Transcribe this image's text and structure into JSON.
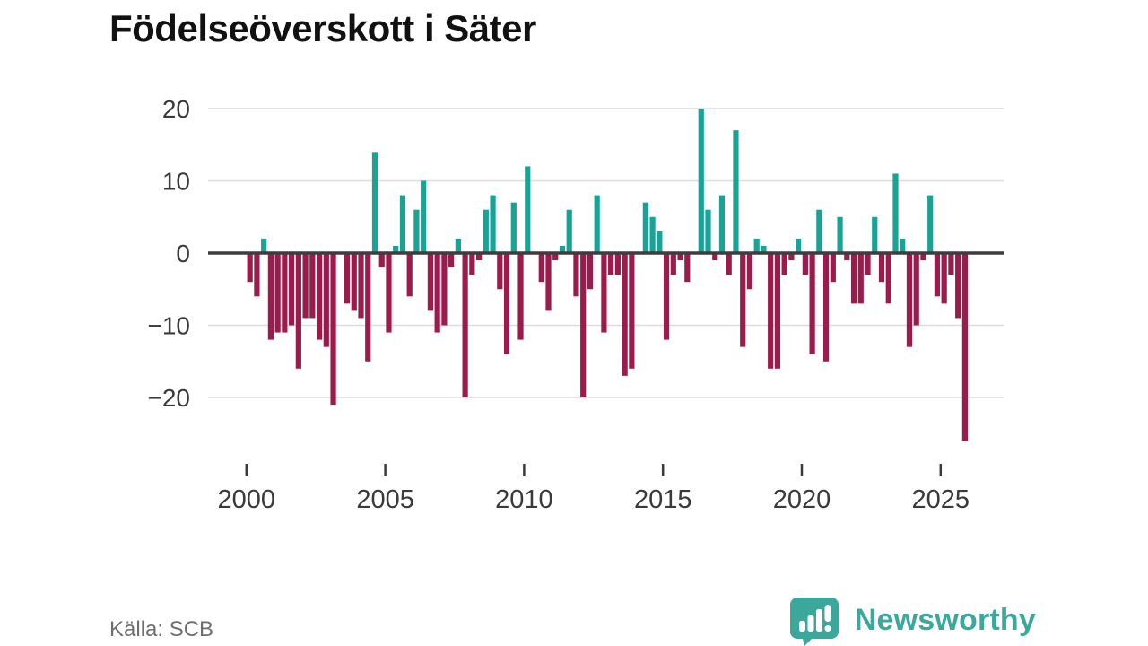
{
  "title": "Födelseöverskott i Säter",
  "source": "Källa: SCB",
  "brand": {
    "name": "Newsworthy",
    "icon": "bar-chart-speech-bubble-icon"
  },
  "colors": {
    "positive": "#1aa296",
    "negative": "#9b1b4d",
    "zero_axis": "#3d3d3d",
    "grid": "#dcdcdc",
    "tick_text": "#3a3a3a",
    "title_text": "#111111",
    "source_text": "#6e6e6e",
    "brand_teal": "#3ba89b"
  },
  "chart_data": {
    "type": "bar",
    "title": "Födelseöverskott i Säter",
    "frequency": "quarterly",
    "unit": "persons",
    "grid": true,
    "legend": false,
    "ylim": [
      -27,
      22
    ],
    "y_ticks": [
      20,
      10,
      0,
      -10,
      -20
    ],
    "x_ticks": [
      2000,
      2005,
      2010,
      2015,
      2020,
      2025
    ],
    "years": [
      {
        "year": 2000,
        "quarters": [
          -4,
          -6,
          2,
          -12
        ]
      },
      {
        "year": 2001,
        "quarters": [
          -11,
          -11,
          -10,
          -16
        ]
      },
      {
        "year": 2002,
        "quarters": [
          -9,
          -9,
          -12,
          -13
        ]
      },
      {
        "year": 2003,
        "quarters": [
          -21,
          0,
          -7,
          -8
        ]
      },
      {
        "year": 2004,
        "quarters": [
          -9,
          -15,
          14,
          -2
        ]
      },
      {
        "year": 2005,
        "quarters": [
          -11,
          1,
          8,
          -6
        ]
      },
      {
        "year": 2006,
        "quarters": [
          6,
          10,
          -8,
          -11
        ]
      },
      {
        "year": 2007,
        "quarters": [
          -10,
          -2,
          2,
          -20
        ]
      },
      {
        "year": 2008,
        "quarters": [
          -3,
          -1,
          6,
          8
        ]
      },
      {
        "year": 2009,
        "quarters": [
          -5,
          -14,
          7,
          -12
        ]
      },
      {
        "year": 2010,
        "quarters": [
          12,
          0,
          -4,
          -8
        ]
      },
      {
        "year": 2011,
        "quarters": [
          -1,
          1,
          6,
          -6
        ]
      },
      {
        "year": 2012,
        "quarters": [
          -20,
          -5,
          8,
          -11
        ]
      },
      {
        "year": 2013,
        "quarters": [
          -3,
          -3,
          -17,
          -16
        ]
      },
      {
        "year": 2014,
        "quarters": [
          0,
          7,
          5,
          3
        ]
      },
      {
        "year": 2015,
        "quarters": [
          -12,
          -3,
          -1,
          -4
        ]
      },
      {
        "year": 2016,
        "quarters": [
          0,
          20,
          6,
          -1
        ]
      },
      {
        "year": 2017,
        "quarters": [
          8,
          -3,
          17,
          -13
        ]
      },
      {
        "year": 2018,
        "quarters": [
          -5,
          2,
          1,
          -16
        ]
      },
      {
        "year": 2019,
        "quarters": [
          -16,
          -3,
          -1,
          2
        ]
      },
      {
        "year": 2020,
        "quarters": [
          -3,
          -14,
          6,
          -15
        ]
      },
      {
        "year": 2021,
        "quarters": [
          -4,
          5,
          -1,
          -7
        ]
      },
      {
        "year": 2022,
        "quarters": [
          -7,
          -3,
          5,
          -4
        ]
      },
      {
        "year": 2023,
        "quarters": [
          -7,
          11,
          2,
          -13
        ]
      },
      {
        "year": 2024,
        "quarters": [
          -10,
          -1,
          8,
          -6
        ]
      },
      {
        "year": 2025,
        "quarters": [
          -7,
          -3,
          -9,
          -26
        ]
      }
    ]
  }
}
